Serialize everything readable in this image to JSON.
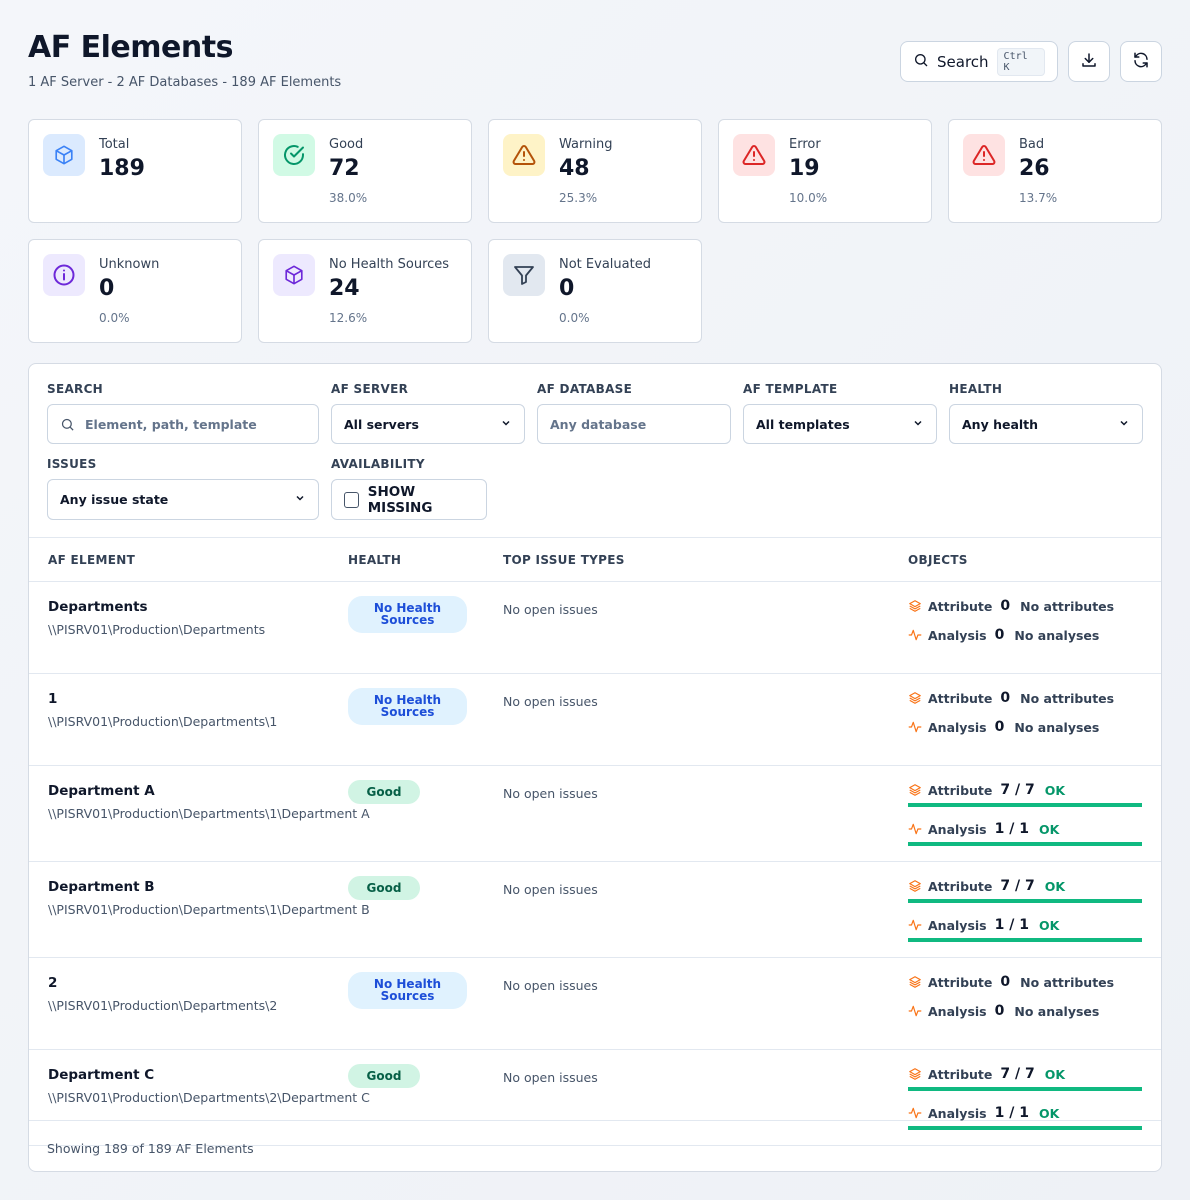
{
  "header": {
    "title": "AF Elements",
    "subtitle": "1 AF Server - 2 AF Databases - 189 AF Elements"
  },
  "actions": {
    "search_label": "Search",
    "search_shortcut": "Ctrl K"
  },
  "stats": [
    {
      "label": "Total",
      "value": "189",
      "pct": "",
      "icon": "cube-icon",
      "color": "#3b82f6",
      "bg": "#dbeafe"
    },
    {
      "label": "Good",
      "value": "72",
      "pct": "38.0%",
      "icon": "check-circle-icon",
      "color": "#059669",
      "bg": "#d1fae5"
    },
    {
      "label": "Warning",
      "value": "48",
      "pct": "25.3%",
      "icon": "warning-icon",
      "color": "#b45309",
      "bg": "#fef3c7"
    },
    {
      "label": "Error",
      "value": "19",
      "pct": "10.0%",
      "icon": "warning-icon",
      "color": "#dc2626",
      "bg": "#fee2e2"
    },
    {
      "label": "Bad",
      "value": "26",
      "pct": "13.7%",
      "icon": "warning-icon",
      "color": "#dc2626",
      "bg": "#fee2e2"
    },
    {
      "label": "Unknown",
      "value": "0",
      "pct": "0.0%",
      "icon": "info-icon",
      "color": "#6d28d9",
      "bg": "#ede9fe"
    },
    {
      "label": "No Health Sources",
      "value": "24",
      "pct": "12.6%",
      "icon": "cube-icon",
      "color": "#6d28d9",
      "bg": "#ede9fe"
    },
    {
      "label": "Not Evaluated",
      "value": "0",
      "pct": "0.0%",
      "icon": "filter-icon",
      "color": "#334155",
      "bg": "#e2e8f0"
    }
  ],
  "filters": {
    "search_label": "SEARCH",
    "search_placeholder": "Element, path, template",
    "server_label": "AF SERVER",
    "server_value": "All servers",
    "database_label": "AF DATABASE",
    "database_placeholder": "Any database",
    "template_label": "AF TEMPLATE",
    "template_value": "All templates",
    "health_label": "HEALTH",
    "health_value": "Any health",
    "issues_label": "ISSUES",
    "issues_value": "Any issue state",
    "availability_label": "AVAILABILITY",
    "show_missing_label": "SHOW MISSING"
  },
  "table": {
    "columns": [
      "AF ELEMENT",
      "HEALTH",
      "TOP ISSUE TYPES",
      "OBJECTS"
    ],
    "rows": [
      {
        "name": "Departments",
        "path": "\\\\PISRV01\\Production\\Departments",
        "health": "No Health Sources",
        "health_kind": "nohealth",
        "issues": "No open issues",
        "attr_label": "Attribute",
        "attr_count": "0",
        "attr_status": "No attributes",
        "attr_ok": false,
        "attr_fill": null,
        "an_label": "Analysis",
        "an_count": "0",
        "an_status": "No analyses",
        "an_ok": false,
        "an_fill": null
      },
      {
        "name": "1",
        "path": "\\\\PISRV01\\Production\\Departments\\1",
        "health": "No Health Sources",
        "health_kind": "nohealth",
        "issues": "No open issues",
        "attr_label": "Attribute",
        "attr_count": "0",
        "attr_status": "No attributes",
        "attr_ok": false,
        "attr_fill": null,
        "an_label": "Analysis",
        "an_count": "0",
        "an_status": "No analyses",
        "an_ok": false,
        "an_fill": null
      },
      {
        "name": "Department A",
        "path": "\\\\PISRV01\\Production\\Departments\\1\\Department A",
        "health": "Good",
        "health_kind": "good",
        "issues": "No open issues",
        "attr_label": "Attribute",
        "attr_count": "7 / 7",
        "attr_status": "OK",
        "attr_ok": true,
        "attr_fill": 1.0,
        "an_label": "Analysis",
        "an_count": "1 / 1",
        "an_status": "OK",
        "an_ok": true,
        "an_fill": 1.0
      },
      {
        "name": "Department B",
        "path": "\\\\PISRV01\\Production\\Departments\\1\\Department B",
        "health": "Good",
        "health_kind": "good",
        "issues": "No open issues",
        "attr_label": "Attribute",
        "attr_count": "7 / 7",
        "attr_status": "OK",
        "attr_ok": true,
        "attr_fill": 1.0,
        "an_label": "Analysis",
        "an_count": "1 / 1",
        "an_status": "OK",
        "an_ok": true,
        "an_fill": 1.0
      },
      {
        "name": "2",
        "path": "\\\\PISRV01\\Production\\Departments\\2",
        "health": "No Health Sources",
        "health_kind": "nohealth",
        "issues": "No open issues",
        "attr_label": "Attribute",
        "attr_count": "0",
        "attr_status": "No attributes",
        "attr_ok": false,
        "attr_fill": null,
        "an_label": "Analysis",
        "an_count": "0",
        "an_status": "No analyses",
        "an_ok": false,
        "an_fill": null
      },
      {
        "name": "Department C",
        "path": "\\\\PISRV01\\Production\\Departments\\2\\Department C",
        "health": "Good",
        "health_kind": "good",
        "issues": "No open issues",
        "attr_label": "Attribute",
        "attr_count": "7 / 7",
        "attr_status": "OK",
        "attr_ok": true,
        "attr_fill": 1.0,
        "an_label": "Analysis",
        "an_count": "1 / 1",
        "an_status": "OK",
        "an_ok": true,
        "an_fill": 1.0
      }
    ]
  },
  "footer": {
    "showing": "Showing 189 of 189 AF Elements"
  }
}
